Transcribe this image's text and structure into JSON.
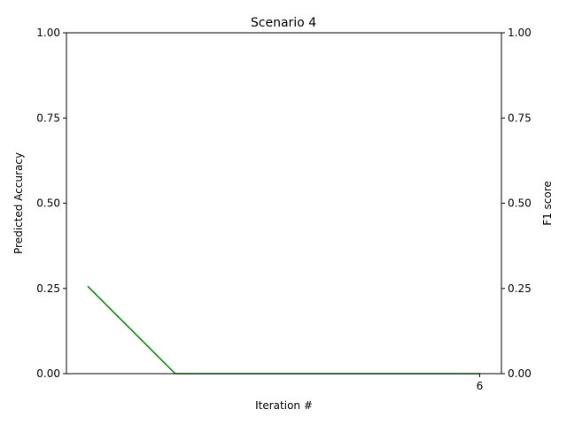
{
  "chart_data": {
    "type": "line",
    "title": "Scenario 4",
    "xlabel": "Iteration #",
    "ylabel": "Predicted Accuracy",
    "ylabel_right": "F1 score",
    "xlim": [
      1.25,
      6.25
    ],
    "ylim": [
      0,
      1
    ],
    "ylim_right": [
      0,
      1
    ],
    "x_ticks": [
      6
    ],
    "y_ticks": [
      0.0,
      0.25,
      0.5,
      0.75,
      1.0
    ],
    "y_tick_labels": [
      "0.00",
      "0.25",
      "0.50",
      "0.75",
      "1.00"
    ],
    "y_ticks_right": [
      0.0,
      0.25,
      0.5,
      0.75,
      1.0
    ],
    "y_tick_labels_right": [
      "0.00",
      "0.25",
      "0.50",
      "0.75",
      "1.00"
    ],
    "grid": false,
    "series": [
      {
        "color": "#008000",
        "x": [
          1.5,
          2.5,
          3.5,
          4.5,
          5.5,
          6.0
        ],
        "y": [
          0.255,
          0.0,
          0.0,
          0.0,
          0.0,
          0.0
        ]
      }
    ]
  }
}
